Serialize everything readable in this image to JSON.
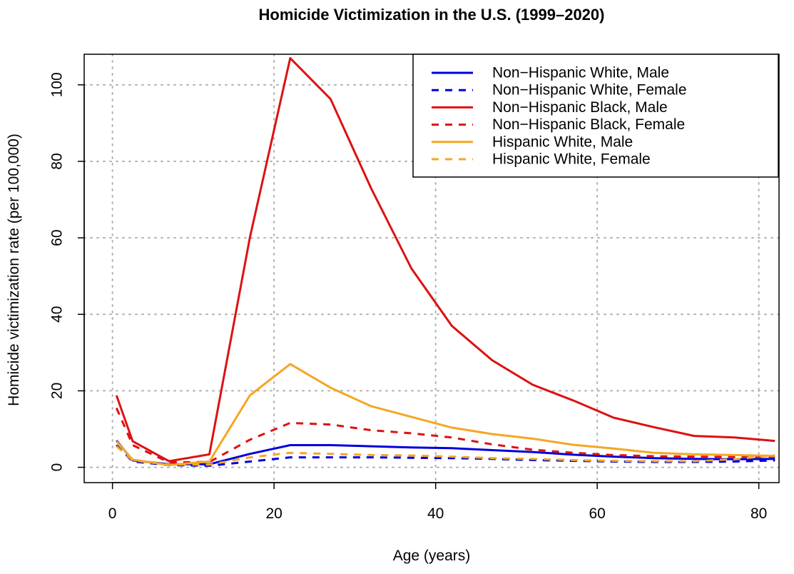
{
  "chart_data": {
    "type": "line",
    "title": "Homicide Victimization in the U.S. (1999–2020)",
    "xlabel": "Age (years)",
    "ylabel": "Homicide victimization rate (per 100,000)",
    "xlim": [
      -3.5,
      82.5
    ],
    "ylim": [
      -4,
      108
    ],
    "xticks": [
      0,
      20,
      40,
      60,
      80
    ],
    "yticks": [
      0,
      20,
      40,
      60,
      80,
      100
    ],
    "grid": true,
    "legend_position": "top-right",
    "x": [
      0.5,
      2.5,
      7,
      12,
      17,
      22,
      27,
      32,
      37,
      42,
      47,
      52,
      57,
      62,
      67,
      72,
      77,
      82
    ],
    "series": [
      {
        "name": "Non−Hispanic White, Male",
        "color": "#0000dd",
        "linestyle": "solid",
        "values": [
          7.0,
          1.8,
          0.8,
          0.8,
          3.5,
          5.8,
          5.8,
          5.5,
          5.2,
          5.0,
          4.5,
          4.0,
          3.3,
          2.8,
          2.4,
          2.2,
          2.1,
          2.2
        ]
      },
      {
        "name": "Non−Hispanic White, Female",
        "color": "#0000dd",
        "linestyle": "dashed",
        "values": [
          5.8,
          1.5,
          0.6,
          0.4,
          1.5,
          2.6,
          2.6,
          2.6,
          2.5,
          2.4,
          2.2,
          1.9,
          1.7,
          1.5,
          1.4,
          1.4,
          1.5,
          1.8
        ]
      },
      {
        "name": "Non−Hispanic Black, Male",
        "color": "#dd1111",
        "linestyle": "solid",
        "values": [
          18.8,
          6.8,
          1.6,
          3.4,
          60.0,
          107.0,
          96.3,
          73.0,
          52.0,
          37.0,
          28.0,
          21.6,
          17.5,
          13.0,
          10.5,
          8.2,
          7.8,
          6.9
        ]
      },
      {
        "name": "Non−Hispanic Black, Female",
        "color": "#dd1111",
        "linestyle": "dashed",
        "values": [
          15.5,
          5.8,
          1.3,
          1.4,
          7.2,
          11.6,
          11.2,
          9.7,
          8.9,
          7.8,
          6.0,
          4.6,
          3.8,
          3.2,
          2.9,
          2.8,
          2.7,
          2.8
        ]
      },
      {
        "name": "Hispanic White, Male",
        "color": "#f5a623",
        "linestyle": "solid",
        "values": [
          6.8,
          2.0,
          0.6,
          1.5,
          18.8,
          27.0,
          20.8,
          16.0,
          13.2,
          10.4,
          8.7,
          7.5,
          5.9,
          4.9,
          3.8,
          3.4,
          3.2,
          3.0
        ]
      },
      {
        "name": "Hispanic White, Female",
        "color": "#f5a623",
        "linestyle": "dashed",
        "values": [
          5.5,
          1.8,
          0.7,
          0.7,
          2.6,
          3.8,
          3.5,
          3.2,
          3.1,
          2.8,
          2.4,
          2.2,
          1.9,
          1.7,
          1.6,
          1.6,
          2.1,
          3.2
        ]
      }
    ]
  }
}
